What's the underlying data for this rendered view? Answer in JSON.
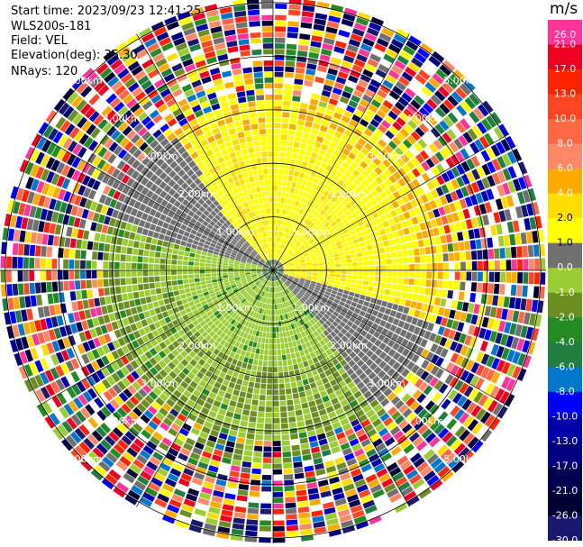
{
  "header": {
    "start_time": "Start time: 2023/09/23 12:41:25",
    "instrument": "WLS200s-181",
    "field": "Field: VEL",
    "elevation": "Elevation(deg): 35.30",
    "nrays": "NRays: 120"
  },
  "chart_data": {
    "type": "heatmap",
    "projection": "polar-ppi",
    "rings_km": [
      1,
      2,
      3,
      4,
      5
    ],
    "ring_labels": [
      "1.00km",
      "2.00km",
      "3.00km",
      "4.00km",
      "5.00km"
    ],
    "spokes_deg": [
      0,
      30,
      60,
      90,
      120,
      150
    ],
    "colorbar": {
      "unit_label": "m/s",
      "ticks": [
        "26.0",
        "21.0",
        "17.0",
        "13.0",
        "10.0",
        "8.0",
        "6.0",
        "4.0",
        "2.0",
        "1.0",
        "0.0",
        "-1.0",
        "-2.0",
        "-4.0",
        "-6.0",
        "-8.0",
        "-10.0",
        "-13.0",
        "-17.0",
        "-21.0",
        "-26.0",
        "-30.0"
      ],
      "colors": [
        "#ff3399",
        "#ee0022",
        "#ff2200",
        "#ff4422",
        "#ff6644",
        "#ff8866",
        "#ffaa00",
        "#ffdd00",
        "#ffff00",
        "#707070",
        "#9acd32",
        "#6b8e23",
        "#228b22",
        "#1e7f3f",
        "#0077cc",
        "#0000ff",
        "#0000aa",
        "#000080",
        "#000050",
        "#000033",
        "#191970"
      ]
    },
    "rays": 120,
    "range_gates": 48
  }
}
